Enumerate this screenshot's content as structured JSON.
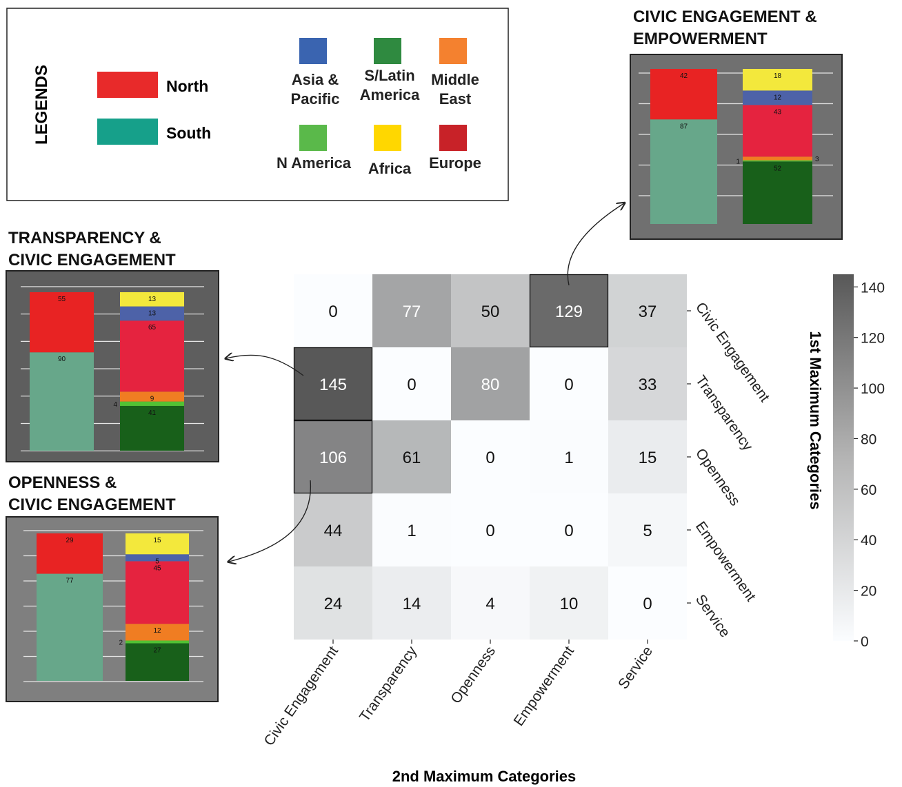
{
  "legend": {
    "title": "LEGENDS",
    "hemispheres": [
      {
        "label": "North",
        "color": "#e82a2a"
      },
      {
        "label": "South",
        "color": "#16a08a"
      }
    ],
    "regions": [
      {
        "lines": [
          "Asia &",
          "Pacific"
        ],
        "color": "#3a64b0"
      },
      {
        "lines": [
          "S/Latin",
          "America"
        ],
        "color": "#2f8a40"
      },
      {
        "lines": [
          "Middle",
          "East"
        ],
        "color": "#f4812f"
      },
      {
        "lines": [
          "N America"
        ],
        "color": "#5ab94a"
      },
      {
        "lines": [
          "Africa"
        ],
        "color": "#ffd700"
      },
      {
        "lines": [
          "Europe"
        ],
        "color": "#c82228"
      }
    ]
  },
  "chart_data": [
    {
      "type": "heatmap",
      "xlabel": "2nd Maximum Categories",
      "ylabel": "1st Maximum Categories",
      "x_categories": [
        "Civic Engagement",
        "Transparency",
        "Openness",
        "Empowerment",
        "Service"
      ],
      "y_categories": [
        "Civic Engagement",
        "Transparency",
        "Openness",
        "Empowerment",
        "Service"
      ],
      "values": [
        [
          0,
          77,
          50,
          129,
          37
        ],
        [
          145,
          0,
          80,
          0,
          33
        ],
        [
          106,
          61,
          0,
          1,
          15
        ],
        [
          44,
          1,
          0,
          0,
          5
        ],
        [
          24,
          14,
          4,
          10,
          0
        ]
      ],
      "highlighted_cells": [
        [
          0,
          3
        ],
        [
          1,
          0
        ],
        [
          2,
          0
        ]
      ],
      "colorbar": {
        "min": 0,
        "max": 145,
        "ticks": [
          0,
          20,
          40,
          60,
          80,
          100,
          120,
          140
        ]
      }
    },
    {
      "type": "bar",
      "title_lines": [
        "CIVIC ENGAGEMENT &",
        "EMPOWERMENT"
      ],
      "bars": [
        {
          "name": "hemisphere",
          "segments": [
            {
              "key": "South",
              "value": 87,
              "color": "#67a78a"
            },
            {
              "key": "North",
              "value": 42,
              "color": "#e82323"
            }
          ]
        },
        {
          "name": "region",
          "segments": [
            {
              "key": "S/Latin America",
              "value": 52,
              "color": "#18601a"
            },
            {
              "key": "N America",
              "value": 1,
              "color": "#52c234"
            },
            {
              "key": "Middle East",
              "value": 3,
              "color": "#f07d22"
            },
            {
              "key": "Europe",
              "value": 43,
              "color": "#e5233f"
            },
            {
              "key": "Asia & Pacific",
              "value": 12,
              "color": "#4d62a8"
            },
            {
              "key": "Africa",
              "value": 18,
              "color": "#f3e83c"
            }
          ]
        }
      ]
    },
    {
      "type": "bar",
      "title_lines": [
        "TRANSPARENCY &",
        "CIVIC ENGAGEMENT"
      ],
      "bars": [
        {
          "name": "hemisphere",
          "segments": [
            {
              "key": "South",
              "value": 90,
              "color": "#67a78a"
            },
            {
              "key": "North",
              "value": 55,
              "color": "#e82323"
            }
          ]
        },
        {
          "name": "region",
          "segments": [
            {
              "key": "S/Latin America",
              "value": 41,
              "color": "#18601a"
            },
            {
              "key": "N America",
              "value": 4,
              "color": "#52c234"
            },
            {
              "key": "Middle East",
              "value": 9,
              "color": "#f07d22"
            },
            {
              "key": "Europe",
              "value": 65,
              "color": "#e5233f"
            },
            {
              "key": "Asia & Pacific",
              "value": 13,
              "color": "#4d62a8"
            },
            {
              "key": "Africa",
              "value": 13,
              "color": "#f3e83c"
            }
          ]
        }
      ]
    },
    {
      "type": "bar",
      "title_lines": [
        "OPENNESS &",
        "CIVIC ENGAGEMENT"
      ],
      "bars": [
        {
          "name": "hemisphere",
          "segments": [
            {
              "key": "South",
              "value": 77,
              "color": "#67a78a"
            },
            {
              "key": "North",
              "value": 29,
              "color": "#e82323"
            }
          ]
        },
        {
          "name": "region",
          "segments": [
            {
              "key": "S/Latin America",
              "value": 27,
              "color": "#18601a"
            },
            {
              "key": "N America",
              "value": 2,
              "color": "#52c234"
            },
            {
              "key": "Middle East",
              "value": 12,
              "color": "#f07d22"
            },
            {
              "key": "Europe",
              "value": 45,
              "color": "#e5233f"
            },
            {
              "key": "Asia & Pacific",
              "value": 5,
              "color": "#4d62a8"
            },
            {
              "key": "Africa",
              "value": 15,
              "color": "#f3e83c"
            }
          ]
        }
      ]
    }
  ]
}
